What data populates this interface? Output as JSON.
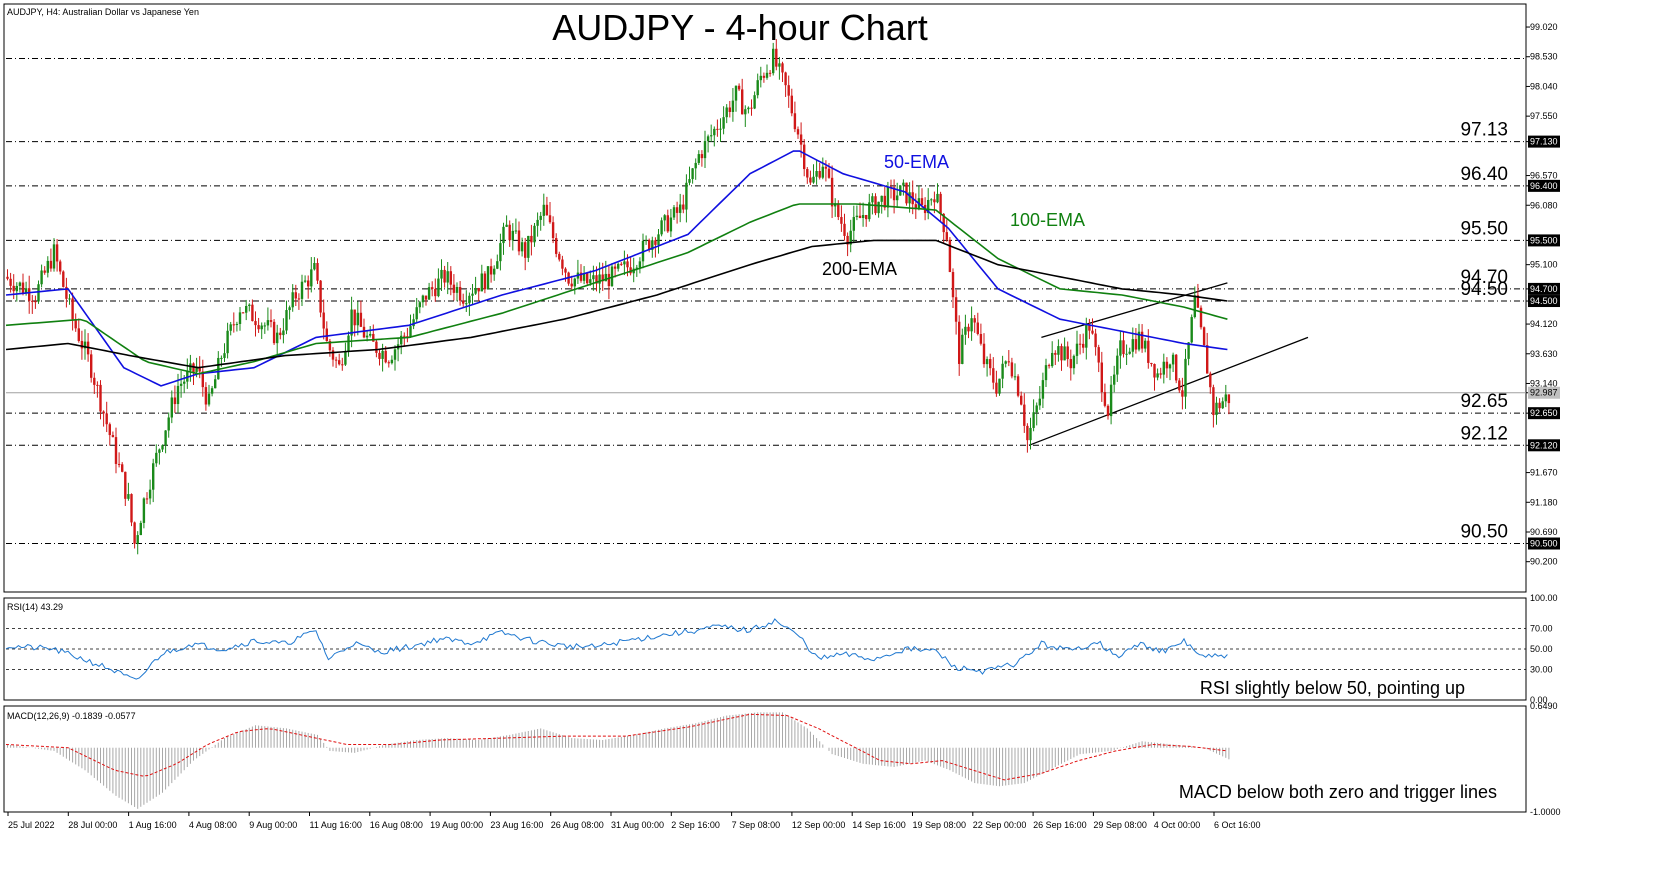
{
  "header": {
    "symbol_info": "AUDJPY, H4:  Australian Dollar vs Japanese Yen",
    "title": "AUDJPY - 4-hour Chart"
  },
  "chart_data": [
    {
      "type": "candlestick",
      "panel": "price",
      "title": "AUDJPY - 4-hour Chart",
      "ylim": [
        89.7,
        99.4
      ],
      "y_ticks": [
        "99.020",
        "98.530",
        "98.040",
        "97.550",
        "97.130",
        "96.570",
        "96.400",
        "96.080",
        "95.500",
        "95.100",
        "94.700",
        "94.500",
        "94.120",
        "93.630",
        "93.140",
        "92.987",
        "92.650",
        "92.120",
        "91.670",
        "91.180",
        "90.690",
        "90.500",
        "90.200"
      ],
      "highlighted_ticks": [
        "97.130",
        "96.400",
        "95.500",
        "94.700",
        "94.500",
        "92.987",
        "92.650",
        "92.120",
        "90.500"
      ],
      "current_price": 92.987,
      "x_labels": [
        "25 Jul 2022",
        "28 Jul 00:00",
        "1 Aug 16:00",
        "4 Aug 08:00",
        "9 Aug 00:00",
        "11 Aug 16:00",
        "16 Aug 08:00",
        "19 Aug 00:00",
        "23 Aug 16:00",
        "26 Aug 08:00",
        "31 Aug 00:00",
        "2 Sep 16:00",
        "7 Sep 08:00",
        "12 Sep 00:00",
        "14 Sep 16:00",
        "19 Sep 08:00",
        "22 Sep 00:00",
        "26 Sep 16:00",
        "29 Sep 08:00",
        "4 Oct 00:00",
        "6 Oct 16:00"
      ],
      "price_path": [
        [
          0,
          94.9
        ],
        [
          10,
          94.6
        ],
        [
          16,
          95.3
        ],
        [
          22,
          94.2
        ],
        [
          28,
          93.4
        ],
        [
          34,
          92.3
        ],
        [
          40,
          91.2
        ],
        [
          42,
          90.5
        ],
        [
          45,
          91.2
        ],
        [
          50,
          92.1
        ],
        [
          56,
          93.1
        ],
        [
          62,
          93.4
        ],
        [
          66,
          92.8
        ],
        [
          70,
          93.6
        ],
        [
          76,
          94.4
        ],
        [
          82,
          94.2
        ],
        [
          88,
          93.9
        ],
        [
          94,
          94.6
        ],
        [
          100,
          95.0
        ],
        [
          104,
          93.8
        ],
        [
          108,
          93.4
        ],
        [
          112,
          94.3
        ],
        [
          118,
          93.8
        ],
        [
          124,
          93.6
        ],
        [
          130,
          94.0
        ],
        [
          136,
          94.6
        ],
        [
          142,
          94.9
        ],
        [
          148,
          94.6
        ],
        [
          156,
          94.9
        ],
        [
          162,
          95.7
        ],
        [
          168,
          95.3
        ],
        [
          174,
          96.0
        ],
        [
          178,
          95.4
        ],
        [
          182,
          94.9
        ],
        [
          188,
          94.8
        ],
        [
          196,
          94.9
        ],
        [
          202,
          95.1
        ],
        [
          210,
          95.6
        ],
        [
          218,
          96.0
        ],
        [
          224,
          96.9
        ],
        [
          230,
          97.4
        ],
        [
          236,
          97.9
        ],
        [
          240,
          97.6
        ],
        [
          244,
          98.2
        ],
        [
          248,
          98.5
        ],
        [
          252,
          98.0
        ],
        [
          256,
          97.3
        ],
        [
          260,
          96.4
        ],
        [
          264,
          96.8
        ],
        [
          268,
          96.0
        ],
        [
          272,
          95.6
        ],
        [
          278,
          96.0
        ],
        [
          284,
          96.2
        ],
        [
          290,
          96.3
        ],
        [
          296,
          96.0
        ],
        [
          300,
          96.3
        ],
        [
          304,
          95.6
        ],
        [
          306,
          94.5
        ],
        [
          308,
          93.6
        ],
        [
          312,
          94.3
        ],
        [
          316,
          93.5
        ],
        [
          320,
          93.1
        ],
        [
          324,
          93.6
        ],
        [
          328,
          92.9
        ],
        [
          330,
          92.2
        ],
        [
          334,
          92.9
        ],
        [
          338,
          93.8
        ],
        [
          344,
          93.5
        ],
        [
          350,
          94.1
        ],
        [
          356,
          92.7
        ],
        [
          360,
          93.7
        ],
        [
          366,
          93.9
        ],
        [
          372,
          93.3
        ],
        [
          376,
          93.6
        ],
        [
          380,
          93.0
        ],
        [
          384,
          94.5
        ],
        [
          388,
          93.4
        ],
        [
          390,
          92.7
        ],
        [
          394,
          92.9
        ]
      ],
      "candle_count": 395,
      "series": [
        {
          "name": "50-EMA",
          "color": "#1010e0",
          "values": [
            [
              0,
              94.6
            ],
            [
              20,
              94.7
            ],
            [
              38,
              93.4
            ],
            [
              50,
              93.1
            ],
            [
              62,
              93.3
            ],
            [
              80,
              93.4
            ],
            [
              100,
              93.9
            ],
            [
              130,
              94.1
            ],
            [
              160,
              94.6
            ],
            [
              190,
              95.0
            ],
            [
              220,
              95.6
            ],
            [
              240,
              96.6
            ],
            [
              255,
              97.0
            ],
            [
              270,
              96.6
            ],
            [
              290,
              96.3
            ],
            [
              304,
              95.7
            ],
            [
              320,
              94.7
            ],
            [
              340,
              94.2
            ],
            [
              360,
              94.0
            ],
            [
              380,
              93.8
            ],
            [
              394,
              93.7
            ]
          ]
        },
        {
          "name": "100-EMA",
          "color": "#108010",
          "values": [
            [
              0,
              94.1
            ],
            [
              25,
              94.2
            ],
            [
              45,
              93.5
            ],
            [
              62,
              93.3
            ],
            [
              80,
              93.5
            ],
            [
              100,
              93.8
            ],
            [
              130,
              93.9
            ],
            [
              160,
              94.3
            ],
            [
              190,
              94.8
            ],
            [
              220,
              95.3
            ],
            [
              240,
              95.8
            ],
            [
              255,
              96.1
            ],
            [
              275,
              96.1
            ],
            [
              300,
              96.0
            ],
            [
              320,
              95.2
            ],
            [
              340,
              94.7
            ],
            [
              360,
              94.6
            ],
            [
              380,
              94.4
            ],
            [
              394,
              94.2
            ]
          ]
        },
        {
          "name": "200-EMA",
          "color": "#000000",
          "values": [
            [
              0,
              93.7
            ],
            [
              20,
              93.8
            ],
            [
              40,
              93.6
            ],
            [
              62,
              93.4
            ],
            [
              90,
              93.6
            ],
            [
              120,
              93.7
            ],
            [
              150,
              93.9
            ],
            [
              180,
              94.2
            ],
            [
              210,
              94.6
            ],
            [
              240,
              95.1
            ],
            [
              260,
              95.4
            ],
            [
              280,
              95.5
            ],
            [
              300,
              95.5
            ],
            [
              320,
              95.1
            ],
            [
              340,
              94.9
            ],
            [
              360,
              94.7
            ],
            [
              380,
              94.6
            ],
            [
              394,
              94.5
            ]
          ]
        }
      ],
      "ema_labels": [
        {
          "text": "50-EMA",
          "color": "#1010e0"
        },
        {
          "text": "100-EMA",
          "color": "#108010"
        },
        {
          "text": "200-EMA",
          "color": "#000000"
        }
      ],
      "levels": [
        {
          "label": "97.13",
          "value": 97.13
        },
        {
          "label": "96.40",
          "value": 96.4
        },
        {
          "label": "95.50",
          "value": 95.5
        },
        {
          "label": "94.70",
          "value": 94.7
        },
        {
          "label": "94.50",
          "value": 94.5
        },
        {
          "label": "92.65",
          "value": 92.65
        },
        {
          "label": "92.12",
          "value": 92.12
        },
        {
          "label": "90.50",
          "value": 90.5
        }
      ],
      "extra_levels": [
        98.5
      ],
      "trendlines": [
        {
          "name": "channel-upper",
          "from": [
            334,
            93.9
          ],
          "to": [
            394,
            94.8
          ]
        },
        {
          "name": "channel-lower",
          "from": [
            330,
            92.12
          ],
          "to": [
            420,
            93.9
          ]
        }
      ]
    },
    {
      "type": "line",
      "panel": "rsi",
      "label": "RSI(14) 43.29",
      "ylim": [
        0,
        100
      ],
      "y_ticks": [
        "100.00",
        "70.00",
        "50.00",
        "30.00",
        "0.00"
      ],
      "reference_lines": [
        30,
        50,
        70
      ],
      "color": "#1f78d0",
      "values": [
        [
          0,
          53
        ],
        [
          15,
          50
        ],
        [
          25,
          40
        ],
        [
          34,
          30
        ],
        [
          42,
          18
        ],
        [
          50,
          45
        ],
        [
          60,
          55
        ],
        [
          70,
          50
        ],
        [
          80,
          58
        ],
        [
          90,
          55
        ],
        [
          100,
          68
        ],
        [
          104,
          40
        ],
        [
          112,
          56
        ],
        [
          120,
          47
        ],
        [
          130,
          52
        ],
        [
          140,
          60
        ],
        [
          150,
          56
        ],
        [
          160,
          66
        ],
        [
          170,
          58
        ],
        [
          180,
          53
        ],
        [
          190,
          52
        ],
        [
          200,
          58
        ],
        [
          210,
          63
        ],
        [
          220,
          67
        ],
        [
          230,
          72
        ],
        [
          240,
          68
        ],
        [
          248,
          78
        ],
        [
          256,
          62
        ],
        [
          262,
          40
        ],
        [
          270,
          45
        ],
        [
          280,
          40
        ],
        [
          290,
          50
        ],
        [
          300,
          48
        ],
        [
          306,
          32
        ],
        [
          316,
          28
        ],
        [
          326,
          36
        ],
        [
          334,
          55
        ],
        [
          344,
          48
        ],
        [
          352,
          58
        ],
        [
          358,
          42
        ],
        [
          366,
          55
        ],
        [
          374,
          47
        ],
        [
          380,
          58
        ],
        [
          386,
          42
        ],
        [
          394,
          43
        ]
      ],
      "annotation": "RSI slightly below 50, pointing up"
    },
    {
      "type": "bar+line",
      "panel": "macd",
      "label": "MACD(12,26,9) -0.1839 -0.0577",
      "ylim": [
        -1.0,
        0.649
      ],
      "y_ticks": [
        "0.6490",
        "-1.0000"
      ],
      "histogram": [
        [
          0,
          0.05
        ],
        [
          15,
          -0.05
        ],
        [
          25,
          -0.35
        ],
        [
          35,
          -0.75
        ],
        [
          42,
          -0.95
        ],
        [
          50,
          -0.7
        ],
        [
          60,
          -0.2
        ],
        [
          70,
          0.15
        ],
        [
          80,
          0.35
        ],
        [
          90,
          0.3
        ],
        [
          100,
          0.2
        ],
        [
          104,
          -0.05
        ],
        [
          112,
          -0.08
        ],
        [
          122,
          0.05
        ],
        [
          132,
          0.12
        ],
        [
          142,
          0.15
        ],
        [
          152,
          0.12
        ],
        [
          162,
          0.2
        ],
        [
          172,
          0.3
        ],
        [
          182,
          0.15
        ],
        [
          192,
          0.12
        ],
        [
          202,
          0.2
        ],
        [
          212,
          0.3
        ],
        [
          222,
          0.38
        ],
        [
          232,
          0.5
        ],
        [
          242,
          0.55
        ],
        [
          250,
          0.55
        ],
        [
          258,
          0.3
        ],
        [
          266,
          -0.1
        ],
        [
          276,
          -0.25
        ],
        [
          286,
          -0.3
        ],
        [
          296,
          -0.2
        ],
        [
          304,
          -0.35
        ],
        [
          312,
          -0.55
        ],
        [
          320,
          -0.6
        ],
        [
          328,
          -0.55
        ],
        [
          336,
          -0.35
        ],
        [
          346,
          -0.1
        ],
        [
          356,
          -0.05
        ],
        [
          366,
          0.1
        ],
        [
          376,
          0.05
        ],
        [
          386,
          0.0
        ],
        [
          394,
          -0.18
        ]
      ],
      "signal": [
        [
          0,
          0.05
        ],
        [
          20,
          0.0
        ],
        [
          35,
          -0.35
        ],
        [
          45,
          -0.45
        ],
        [
          55,
          -0.25
        ],
        [
          65,
          0.05
        ],
        [
          75,
          0.25
        ],
        [
          85,
          0.3
        ],
        [
          95,
          0.2
        ],
        [
          110,
          0.05
        ],
        [
          125,
          0.05
        ],
        [
          140,
          0.12
        ],
        [
          160,
          0.15
        ],
        [
          180,
          0.18
        ],
        [
          200,
          0.18
        ],
        [
          220,
          0.32
        ],
        [
          240,
          0.52
        ],
        [
          252,
          0.5
        ],
        [
          262,
          0.3
        ],
        [
          272,
          0.05
        ],
        [
          282,
          -0.2
        ],
        [
          292,
          -0.25
        ],
        [
          302,
          -0.2
        ],
        [
          312,
          -0.35
        ],
        [
          322,
          -0.5
        ],
        [
          334,
          -0.4
        ],
        [
          346,
          -0.2
        ],
        [
          358,
          -0.05
        ],
        [
          370,
          0.05
        ],
        [
          382,
          0.02
        ],
        [
          394,
          -0.05
        ]
      ],
      "annotation": "MACD below both zero and trigger lines"
    }
  ]
}
